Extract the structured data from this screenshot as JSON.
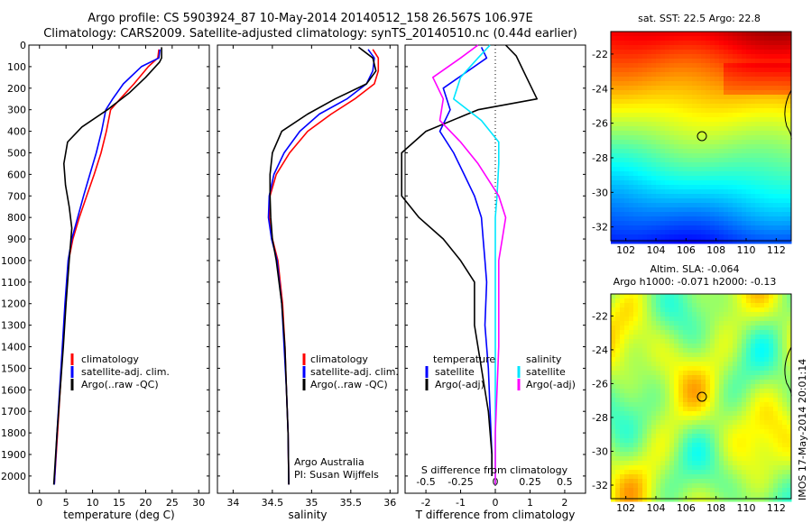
{
  "header": {
    "line1": "Argo profile: CS 5903924_87 10-May-2014 20140512_158 26.567S 106.97E",
    "line2": "Climatology: CARS2009. Satellite-adjusted climatology: synTS_20140510.nc (0.44d earlier)"
  },
  "footer": {
    "credit": "IMOS 17-May-2014 20:01:14"
  },
  "chart_data": [
    {
      "type": "line",
      "id": "temperature",
      "xlabel": "temperature (deg C)",
      "xlim": [
        -2,
        32
      ],
      "xticks": [
        0,
        5,
        10,
        15,
        20,
        25,
        30
      ],
      "ylim": [
        2080,
        0
      ],
      "yticks": [
        0,
        100,
        200,
        300,
        400,
        500,
        600,
        700,
        800,
        900,
        1000,
        1100,
        1200,
        1300,
        1400,
        1500,
        1600,
        1700,
        1800,
        1900,
        2000
      ],
      "legend": [
        "climatology",
        "satellite-adj. clim.",
        "Argo(..raw -QC)"
      ],
      "series": [
        {
          "name": "climatology",
          "color": "#ff0000",
          "x": [
            22.5,
            22.3,
            20.5,
            17.8,
            15.2,
            13.4,
            12.6,
            11.6,
            10.3,
            8.9,
            7.5,
            6.3,
            5.5,
            4.9,
            4.4,
            3.9,
            3.4,
            2.8
          ],
          "y": [
            20,
            60,
            100,
            180,
            250,
            300,
            400,
            500,
            600,
            700,
            800,
            900,
            1000,
            1200,
            1400,
            1600,
            1800,
            2040
          ]
        },
        {
          "name": "satellite-adj. clim.",
          "color": "#0000ff",
          "x": [
            22.7,
            22.5,
            19.2,
            15.8,
            13.8,
            12.5,
            11.7,
            10.7,
            9.5,
            8.3,
            7.2,
            6.1,
            5.4,
            4.8,
            4.3,
            3.8,
            3.3,
            2.8
          ],
          "y": [
            20,
            60,
            100,
            180,
            250,
            300,
            400,
            500,
            600,
            700,
            800,
            900,
            1000,
            1200,
            1400,
            1600,
            1800,
            2040
          ]
        },
        {
          "name": "Argo(..raw -QC)",
          "color": "#000000",
          "x": [
            23.0,
            23.0,
            22.6,
            20.0,
            17.0,
            12.8,
            8.0,
            5.3,
            4.6,
            4.9,
            5.6,
            6.1,
            5.6,
            5.0,
            4.5,
            3.9,
            3.3,
            2.7
          ],
          "y": [
            10,
            60,
            80,
            150,
            220,
            300,
            380,
            450,
            550,
            650,
            750,
            850,
            1000,
            1200,
            1400,
            1600,
            1800,
            2040
          ]
        }
      ]
    },
    {
      "type": "line",
      "id": "salinity",
      "xlabel": "salinity",
      "xlim": [
        33.8,
        36.1
      ],
      "xticks": [
        34,
        34.5,
        35,
        35.5,
        36
      ],
      "ylim": [
        2080,
        0
      ],
      "legend": [
        "climatology",
        "satellite-adj. clim.",
        "Argo(..raw -QC)"
      ],
      "notes": [
        "Argo Australia",
        "PI: Susan Wijffels"
      ],
      "series": [
        {
          "name": "climatology",
          "color": "#ff0000",
          "x": [
            35.78,
            35.85,
            35.85,
            35.8,
            35.55,
            35.25,
            34.95,
            34.72,
            34.55,
            34.47,
            34.46,
            34.5,
            34.57,
            34.63,
            34.66,
            34.68,
            34.7,
            34.71
          ],
          "y": [
            20,
            60,
            120,
            180,
            250,
            320,
            400,
            500,
            600,
            700,
            800,
            900,
            1000,
            1200,
            1400,
            1600,
            1800,
            2040
          ]
        },
        {
          "name": "satellite-adj. clim.",
          "color": "#0000ff",
          "x": [
            35.72,
            35.8,
            35.78,
            35.7,
            35.45,
            35.1,
            34.85,
            34.65,
            34.52,
            34.46,
            34.45,
            34.49,
            34.56,
            34.62,
            34.65,
            34.68,
            34.7,
            34.71
          ],
          "y": [
            20,
            60,
            120,
            180,
            250,
            320,
            400,
            500,
            600,
            700,
            800,
            900,
            1000,
            1200,
            1400,
            1600,
            1800,
            2040
          ]
        },
        {
          "name": "Argo(..raw -QC)",
          "color": "#000000",
          "x": [
            35.6,
            35.78,
            35.82,
            35.7,
            35.3,
            34.95,
            34.62,
            34.5,
            34.47,
            34.47,
            34.48,
            34.5,
            34.55,
            34.62,
            34.66,
            34.68,
            34.7,
            34.71
          ],
          "y": [
            10,
            60,
            120,
            180,
            250,
            320,
            400,
            500,
            600,
            700,
            800,
            900,
            1000,
            1200,
            1400,
            1600,
            1800,
            2040
          ]
        }
      ]
    },
    {
      "type": "line",
      "id": "difference",
      "xlabel": "T difference from climatology",
      "xlabel_top": "S difference from climatology",
      "xlim": [
        -2.6,
        2.6
      ],
      "xticks_T": [
        -2,
        -1,
        0,
        1,
        2
      ],
      "xticks_S": [
        -0.5,
        -0.25,
        0,
        0.25,
        0.5
      ],
      "ylim": [
        2080,
        0
      ],
      "legend_temperature": {
        "title": "temperature",
        "items": [
          "satellite",
          "Argo(-adj)"
        ]
      },
      "legend_salinity": {
        "title": "salinity",
        "items": [
          "satellite",
          "Argo(-adj)"
        ]
      },
      "series": [
        {
          "name": "temperature satellite",
          "color": "#0000ff",
          "x": [
            -0.4,
            -0.25,
            -1.5,
            -1.3,
            -1.6,
            -1.2,
            -0.9,
            -0.6,
            -0.4,
            -0.35,
            -0.3,
            -0.25,
            -0.3,
            -0.2,
            -0.15,
            -0.1,
            -0.1
          ],
          "y": [
            10,
            60,
            200,
            300,
            400,
            500,
            600,
            700,
            800,
            900,
            1000,
            1100,
            1300,
            1500,
            1700,
            1900,
            2000
          ]
        },
        {
          "name": "temperature Argo(-adj)",
          "color": "#000000",
          "x": [
            0.3,
            0.6,
            0.9,
            1.2,
            -0.5,
            -2.0,
            -2.7,
            -2.7,
            -2.2,
            -1.5,
            -1.0,
            -0.6,
            -0.6,
            -0.4,
            -0.2,
            -0.1,
            -0.1
          ],
          "y": [
            0,
            50,
            150,
            250,
            300,
            400,
            500,
            700,
            800,
            900,
            1000,
            1100,
            1300,
            1500,
            1700,
            1900,
            2000
          ]
        },
        {
          "name": "salinity satellite",
          "color": "#00e6ff",
          "x": [
            -0.15,
            -0.5,
            -1.0,
            -1.2,
            -0.4,
            0.1,
            0.1,
            0.05,
            0.0,
            0.0,
            0.0,
            0.0,
            0.0,
            0.0,
            0.0,
            0.0
          ],
          "y": [
            0,
            60,
            150,
            250,
            350,
            450,
            550,
            700,
            800,
            900,
            1000,
            1200,
            1400,
            1600,
            1800,
            2040
          ]
        },
        {
          "name": "salinity Argo(-adj)",
          "color": "#ff00ff",
          "x": [
            -0.5,
            -1.0,
            -1.8,
            -1.5,
            -1.6,
            -1.0,
            -0.5,
            0.1,
            0.3,
            0.2,
            0.1,
            0.1,
            0.1,
            0.05,
            0.0,
            0.0
          ],
          "y": [
            0,
            60,
            150,
            250,
            350,
            450,
            550,
            700,
            800,
            900,
            1000,
            1200,
            1400,
            1600,
            1800,
            2040
          ]
        }
      ]
    },
    {
      "type": "heatmap",
      "id": "sst-map",
      "title": "sat. SST: 22.5 Argo: 22.8",
      "xticks": [
        102,
        104,
        106,
        108,
        110,
        112
      ],
      "yticks": [
        -22,
        -24,
        -26,
        -28,
        -30,
        -32
      ],
      "xlim": [
        101,
        113
      ],
      "ylim": [
        -32.8,
        -20.7
      ],
      "marker": {
        "lon": 106.97,
        "lat": -26.567
      }
    },
    {
      "type": "heatmap",
      "id": "sla-map",
      "title": "Altim. SLA: -0.064",
      "subtitle": "Argo h1000: -0.071 h2000: -0.13",
      "xticks": [
        102,
        104,
        106,
        108,
        110,
        112
      ],
      "yticks": [
        -22,
        -24,
        -26,
        -28,
        -30,
        -32
      ],
      "xlim": [
        101,
        113
      ],
      "ylim": [
        -32.8,
        -20.7
      ],
      "marker": {
        "lon": 106.97,
        "lat": -26.567
      }
    }
  ]
}
